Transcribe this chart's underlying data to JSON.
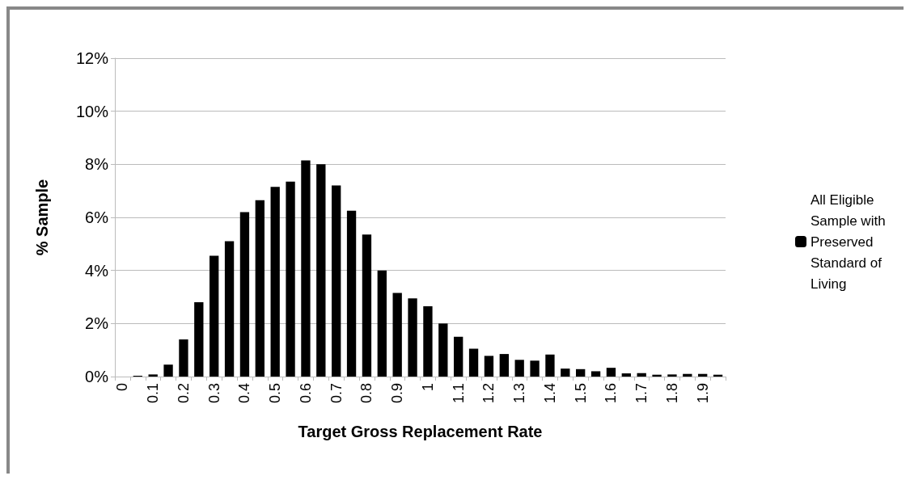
{
  "chart_data": {
    "type": "bar",
    "xlabel": "Target Gross Replacement Rate",
    "ylabel": "% Sample",
    "categories": [
      "0",
      null,
      "0.1",
      null,
      "0.2",
      null,
      "0.3",
      null,
      "0.4",
      null,
      "0.5",
      null,
      "0.6",
      null,
      "0.7",
      null,
      "0.8",
      null,
      "0.9",
      null,
      "1",
      null,
      "1.1",
      null,
      "1.2",
      null,
      "1.3",
      null,
      "1.4",
      null,
      "1.5",
      null,
      "1.6",
      null,
      "1.7",
      null,
      "1.8",
      null,
      "1.9",
      null
    ],
    "series": [
      {
        "name": "All Eligible Sample with Preserved Standard of Living",
        "color": "#000000",
        "values": [
          0,
          0.03,
          0.08,
          0.45,
          1.4,
          2.8,
          4.55,
          5.1,
          6.2,
          6.65,
          7.15,
          7.35,
          8.15,
          8.0,
          7.2,
          6.25,
          5.35,
          4.0,
          3.15,
          2.95,
          2.65,
          2.0,
          1.5,
          1.05,
          0.78,
          0.85,
          0.63,
          0.6,
          0.83,
          0.3,
          0.28,
          0.2,
          0.33,
          0.12,
          0.13,
          0.07,
          0.08,
          0.1,
          0.1,
          0.07
        ]
      }
    ],
    "ylim": [
      0,
      12
    ],
    "yticks": [
      {
        "value": 0,
        "label": "0%"
      },
      {
        "value": 2,
        "label": "2%"
      },
      {
        "value": 4,
        "label": "4%"
      },
      {
        "value": 6,
        "label": "6%"
      },
      {
        "value": 8,
        "label": "8%"
      },
      {
        "value": 10,
        "label": "10%"
      },
      {
        "value": 12,
        "label": "12%"
      }
    ],
    "grid": "y",
    "legend": "right"
  }
}
